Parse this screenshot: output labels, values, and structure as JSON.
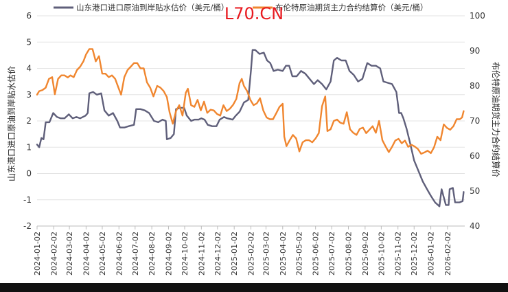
{
  "chart_data": {
    "type": "line",
    "watermark": "L70.CN",
    "legend_placement": "top",
    "x_ticks": [
      "2024-01-02",
      "2024-02-02",
      "2024-03-02",
      "2024-04-02",
      "2024-05-02",
      "2024-06-02",
      "2024-07-02",
      "2024-08-02",
      "2024-09-02",
      "2024-10-02",
      "2024-11-02",
      "2024-12-02",
      "2025-01-02",
      "2025-02-02",
      "2025-03-02",
      "2025-04-02",
      "2025-05-02",
      "2025-06-02",
      "2025-07-02",
      "2025-08-02",
      "2025-09-02",
      "2025-10-02",
      "2025-11-02",
      "2025-12-02",
      "2026-01-02",
      "2026-02-02"
    ],
    "x_range": [
      "2024-01-02",
      "2026-03-06"
    ],
    "y_left": {
      "label": "山东港口进口原油到岸贴水估价",
      "min": -2,
      "max": 6,
      "ticks": [
        "-2",
        "-1",
        "0",
        "1",
        "2",
        "3",
        "4",
        "5",
        "6"
      ]
    },
    "y_right": {
      "label": "布伦特原油期货主力合约结算价",
      "min": 40,
      "max": 100,
      "ticks": [
        "40",
        "50",
        "60",
        "70",
        "80",
        "90",
        "100"
      ]
    },
    "grid": "horizontal",
    "series": [
      {
        "name": "山东港口进口原油到岸贴水估价（美元/桶）",
        "axis": "left",
        "color": "#5f5f7a",
        "points": [
          [
            "2024-01-02",
            1.1
          ],
          [
            "2024-01-06",
            1.0
          ],
          [
            "2024-01-10",
            1.35
          ],
          [
            "2024-01-14",
            1.3
          ],
          [
            "2024-01-18",
            1.95
          ],
          [
            "2024-01-25",
            1.95
          ],
          [
            "2024-02-01",
            2.3
          ],
          [
            "2024-02-08",
            2.15
          ],
          [
            "2024-02-15",
            2.1
          ],
          [
            "2024-02-22",
            2.1
          ],
          [
            "2024-03-01",
            2.25
          ],
          [
            "2024-03-08",
            2.1
          ],
          [
            "2024-03-15",
            2.15
          ],
          [
            "2024-03-22",
            2.1
          ],
          [
            "2024-04-01",
            2.2
          ],
          [
            "2024-04-05",
            2.3
          ],
          [
            "2024-04-08",
            3.05
          ],
          [
            "2024-04-15",
            3.1
          ],
          [
            "2024-04-22",
            3.0
          ],
          [
            "2024-04-30",
            3.05
          ],
          [
            "2024-05-06",
            2.4
          ],
          [
            "2024-05-14",
            2.2
          ],
          [
            "2024-05-22",
            2.3
          ],
          [
            "2024-05-30",
            2.0
          ],
          [
            "2024-06-04",
            1.75
          ],
          [
            "2024-06-12",
            1.75
          ],
          [
            "2024-06-20",
            1.8
          ],
          [
            "2024-06-30",
            1.85
          ],
          [
            "2024-07-04",
            2.45
          ],
          [
            "2024-07-12",
            2.45
          ],
          [
            "2024-07-20",
            2.4
          ],
          [
            "2024-07-28",
            2.3
          ],
          [
            "2024-08-06",
            2.0
          ],
          [
            "2024-08-14",
            1.95
          ],
          [
            "2024-08-22",
            2.05
          ],
          [
            "2024-08-28",
            2.0
          ],
          [
            "2024-08-30",
            1.3
          ],
          [
            "2024-09-06",
            1.35
          ],
          [
            "2024-09-12",
            1.5
          ],
          [
            "2024-09-16",
            2.45
          ],
          [
            "2024-09-24",
            2.5
          ],
          [
            "2024-10-01",
            2.5
          ],
          [
            "2024-10-06",
            2.2
          ],
          [
            "2024-10-14",
            2.0
          ],
          [
            "2024-10-20",
            2.05
          ],
          [
            "2024-10-28",
            2.05
          ],
          [
            "2024-11-02",
            2.1
          ],
          [
            "2024-11-08",
            2.05
          ],
          [
            "2024-11-14",
            1.85
          ],
          [
            "2024-11-22",
            1.8
          ],
          [
            "2024-11-30",
            1.8
          ],
          [
            "2024-12-06",
            2.05
          ],
          [
            "2024-12-14",
            2.15
          ],
          [
            "2024-12-20",
            2.1
          ],
          [
            "2024-12-30",
            2.05
          ],
          [
            "2025-01-05",
            2.2
          ],
          [
            "2025-01-12",
            2.35
          ],
          [
            "2025-01-20",
            2.7
          ],
          [
            "2025-01-28",
            2.8
          ],
          [
            "2025-02-02",
            3.9
          ],
          [
            "2025-02-05",
            4.7
          ],
          [
            "2025-02-10",
            4.7
          ],
          [
            "2025-02-18",
            4.55
          ],
          [
            "2025-02-26",
            4.6
          ],
          [
            "2025-03-04",
            4.3
          ],
          [
            "2025-03-10",
            4.2
          ],
          [
            "2025-03-16",
            3.9
          ],
          [
            "2025-03-24",
            3.95
          ],
          [
            "2025-04-02",
            3.9
          ],
          [
            "2025-04-08",
            4.1
          ],
          [
            "2025-04-14",
            4.1
          ],
          [
            "2025-04-20",
            3.7
          ],
          [
            "2025-04-28",
            3.7
          ],
          [
            "2025-05-06",
            3.9
          ],
          [
            "2025-05-14",
            3.8
          ],
          [
            "2025-05-22",
            3.6
          ],
          [
            "2025-05-30",
            3.4
          ],
          [
            "2025-06-06",
            3.55
          ],
          [
            "2025-06-14",
            3.4
          ],
          [
            "2025-06-22",
            3.2
          ],
          [
            "2025-06-30",
            3.5
          ],
          [
            "2025-07-06",
            4.3
          ],
          [
            "2025-07-12",
            4.4
          ],
          [
            "2025-07-20",
            4.3
          ],
          [
            "2025-07-28",
            4.3
          ],
          [
            "2025-08-04",
            3.9
          ],
          [
            "2025-08-12",
            3.75
          ],
          [
            "2025-08-20",
            3.5
          ],
          [
            "2025-08-28",
            3.6
          ],
          [
            "2025-09-06",
            4.2
          ],
          [
            "2025-09-14",
            4.1
          ],
          [
            "2025-09-22",
            4.1
          ],
          [
            "2025-09-30",
            4.0
          ],
          [
            "2025-10-06",
            3.5
          ],
          [
            "2025-10-14",
            3.45
          ],
          [
            "2025-10-22",
            3.4
          ],
          [
            "2025-10-30",
            3.1
          ],
          [
            "2025-11-04",
            2.3
          ],
          [
            "2025-11-08",
            2.3
          ],
          [
            "2025-11-12",
            2.1
          ],
          [
            "2025-11-18",
            1.7
          ],
          [
            "2025-11-24",
            1.2
          ],
          [
            "2025-12-02",
            0.5
          ],
          [
            "2025-12-10",
            0.1
          ],
          [
            "2025-12-18",
            -0.3
          ],
          [
            "2025-12-26",
            -0.6
          ],
          [
            "2026-01-02",
            -0.85
          ],
          [
            "2026-01-10",
            -1.1
          ],
          [
            "2026-01-18",
            -1.25
          ],
          [
            "2026-01-22",
            -0.6
          ],
          [
            "2026-01-26",
            -0.9
          ],
          [
            "2026-01-30",
            -1.2
          ],
          [
            "2026-02-04",
            -1.2
          ],
          [
            "2026-02-06",
            -0.6
          ],
          [
            "2026-02-12",
            -0.55
          ],
          [
            "2026-02-16",
            -1.1
          ],
          [
            "2026-02-24",
            -1.1
          ],
          [
            "2026-03-02",
            -1.05
          ],
          [
            "2026-03-04",
            -0.7
          ]
        ]
      },
      {
        "name": "布伦特原油期货主力合约结算价（美元/桶）",
        "axis": "right",
        "color": "#f0862f",
        "points": [
          [
            "2024-01-02",
            77.5
          ],
          [
            "2024-01-06",
            78.5
          ],
          [
            "2024-01-12",
            78.8
          ],
          [
            "2024-01-18",
            79.5
          ],
          [
            "2024-01-24",
            82.0
          ],
          [
            "2024-01-30",
            82.5
          ],
          [
            "2024-02-04",
            77.6
          ],
          [
            "2024-02-10",
            82.0
          ],
          [
            "2024-02-16",
            83.0
          ],
          [
            "2024-02-22",
            83.0
          ],
          [
            "2024-02-28",
            82.4
          ],
          [
            "2024-03-04",
            83.0
          ],
          [
            "2024-03-10",
            82.5
          ],
          [
            "2024-03-16",
            84.5
          ],
          [
            "2024-03-22",
            85.5
          ],
          [
            "2024-03-28",
            87.0
          ],
          [
            "2024-04-02",
            89.0
          ],
          [
            "2024-04-08",
            90.5
          ],
          [
            "2024-04-14",
            90.5
          ],
          [
            "2024-04-20",
            87.0
          ],
          [
            "2024-04-26",
            88.5
          ],
          [
            "2024-05-02",
            83.5
          ],
          [
            "2024-05-08",
            83.5
          ],
          [
            "2024-05-14",
            82.5
          ],
          [
            "2024-05-20",
            83.0
          ],
          [
            "2024-05-26",
            82.0
          ],
          [
            "2024-06-01",
            79.5
          ],
          [
            "2024-06-06",
            77.5
          ],
          [
            "2024-06-12",
            82.5
          ],
          [
            "2024-06-18",
            84.5
          ],
          [
            "2024-06-24",
            85.5
          ],
          [
            "2024-06-30",
            86.5
          ],
          [
            "2024-07-06",
            86.5
          ],
          [
            "2024-07-12",
            85.0
          ],
          [
            "2024-07-18",
            85.0
          ],
          [
            "2024-07-24",
            81.0
          ],
          [
            "2024-07-30",
            79.5
          ],
          [
            "2024-08-05",
            77.0
          ],
          [
            "2024-08-12",
            80.0
          ],
          [
            "2024-08-18",
            79.5
          ],
          [
            "2024-08-24",
            78.5
          ],
          [
            "2024-08-30",
            76.8
          ],
          [
            "2024-09-04",
            72.5
          ],
          [
            "2024-09-10",
            69.2
          ],
          [
            "2024-09-16",
            72.8
          ],
          [
            "2024-09-22",
            74.5
          ],
          [
            "2024-09-28",
            71.5
          ],
          [
            "2024-10-04",
            78.0
          ],
          [
            "2024-10-08",
            79.2
          ],
          [
            "2024-10-14",
            74.5
          ],
          [
            "2024-10-20",
            74.0
          ],
          [
            "2024-10-26",
            76.0
          ],
          [
            "2024-11-01",
            73.0
          ],
          [
            "2024-11-07",
            75.5
          ],
          [
            "2024-11-13",
            72.3
          ],
          [
            "2024-11-19",
            73.2
          ],
          [
            "2024-11-25",
            73.0
          ],
          [
            "2024-12-01",
            72.0
          ],
          [
            "2024-12-07",
            71.5
          ],
          [
            "2024-12-13",
            74.5
          ],
          [
            "2024-12-19",
            72.8
          ],
          [
            "2024-12-25",
            73.5
          ],
          [
            "2024-12-31",
            74.6
          ],
          [
            "2025-01-06",
            76.3
          ],
          [
            "2025-01-12",
            80.8
          ],
          [
            "2025-01-16",
            82.0
          ],
          [
            "2025-01-20",
            80.0
          ],
          [
            "2025-01-26",
            78.5
          ],
          [
            "2025-02-01",
            76.0
          ],
          [
            "2025-02-07",
            74.5
          ],
          [
            "2025-02-13",
            75.0
          ],
          [
            "2025-02-19",
            76.5
          ],
          [
            "2025-02-25",
            73.0
          ],
          [
            "2025-03-03",
            71.0
          ],
          [
            "2025-03-09",
            70.5
          ],
          [
            "2025-03-15",
            70.5
          ],
          [
            "2025-03-21",
            72.2
          ],
          [
            "2025-03-27",
            74.0
          ],
          [
            "2025-04-02",
            74.9
          ],
          [
            "2025-04-05",
            65.5
          ],
          [
            "2025-04-09",
            62.8
          ],
          [
            "2025-04-15",
            64.5
          ],
          [
            "2025-04-21",
            66.0
          ],
          [
            "2025-04-27",
            65.0
          ],
          [
            "2025-05-03",
            61.3
          ],
          [
            "2025-05-09",
            63.9
          ],
          [
            "2025-05-15",
            64.5
          ],
          [
            "2025-05-21",
            64.5
          ],
          [
            "2025-05-27",
            63.9
          ],
          [
            "2025-06-02",
            65.0
          ],
          [
            "2025-06-08",
            66.5
          ],
          [
            "2025-06-14",
            74.2
          ],
          [
            "2025-06-20",
            77.0
          ],
          [
            "2025-06-24",
            67.1
          ],
          [
            "2025-06-30",
            67.6
          ],
          [
            "2025-07-06",
            70.0
          ],
          [
            "2025-07-12",
            70.4
          ],
          [
            "2025-07-18",
            69.5
          ],
          [
            "2025-07-24",
            69.2
          ],
          [
            "2025-07-30",
            72.5
          ],
          [
            "2025-08-05",
            67.6
          ],
          [
            "2025-08-11",
            66.6
          ],
          [
            "2025-08-17",
            66.0
          ],
          [
            "2025-08-23",
            67.7
          ],
          [
            "2025-08-29",
            68.1
          ],
          [
            "2025-09-04",
            66.5
          ],
          [
            "2025-09-10",
            67.5
          ],
          [
            "2025-09-16",
            68.5
          ],
          [
            "2025-09-22",
            66.6
          ],
          [
            "2025-09-28",
            70.0
          ],
          [
            "2025-10-04",
            64.5
          ],
          [
            "2025-10-10",
            62.7
          ],
          [
            "2025-10-16",
            61.1
          ],
          [
            "2025-10-22",
            62.6
          ],
          [
            "2025-10-28",
            64.4
          ],
          [
            "2025-11-03",
            64.9
          ],
          [
            "2025-11-09",
            63.6
          ],
          [
            "2025-11-15",
            64.4
          ],
          [
            "2025-11-21",
            62.6
          ],
          [
            "2025-11-27",
            63.2
          ],
          [
            "2025-12-03",
            62.7
          ],
          [
            "2025-12-09",
            62.0
          ],
          [
            "2025-12-15",
            60.6
          ],
          [
            "2025-12-21",
            61.0
          ],
          [
            "2025-12-27",
            61.5
          ],
          [
            "2026-01-02",
            60.8
          ],
          [
            "2026-01-08",
            62.5
          ],
          [
            "2026-01-14",
            65.5
          ],
          [
            "2026-01-20",
            64.5
          ],
          [
            "2026-01-26",
            69.0
          ],
          [
            "2026-02-01",
            68.0
          ],
          [
            "2026-02-07",
            67.5
          ],
          [
            "2026-02-13",
            68.5
          ],
          [
            "2026-02-19",
            70.5
          ],
          [
            "2026-02-25",
            70.5
          ],
          [
            "2026-03-01",
            71.0
          ],
          [
            "2026-03-04",
            72.8
          ]
        ]
      }
    ]
  }
}
